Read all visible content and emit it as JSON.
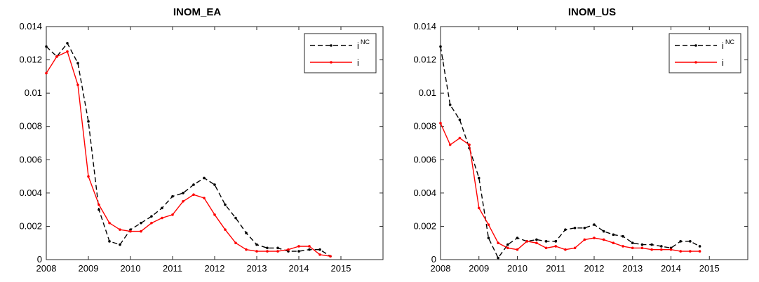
{
  "chart_data": [
    {
      "type": "line",
      "title": "INOM_EA",
      "xlabel": "",
      "ylabel": "",
      "xlim": [
        2008,
        2016
      ],
      "ylim": [
        0,
        0.014
      ],
      "xticks": [
        2008,
        2009,
        2010,
        2011,
        2012,
        2013,
        2014,
        2015
      ],
      "yticks": [
        0,
        0.002,
        0.004,
        0.006,
        0.008,
        0.01,
        0.012,
        0.014
      ],
      "ytick_labels": [
        "0",
        "0.002",
        "0.004",
        "0.006",
        "0.008",
        "0.01",
        "0.012",
        "0.014"
      ],
      "legend_position": "top-right",
      "series": [
        {
          "name": "i^NC",
          "legend_base": "i",
          "legend_sup": "NC",
          "color": "#000000",
          "style": "dashed",
          "x": [
            2008.0,
            2008.25,
            2008.5,
            2008.75,
            2009.0,
            2009.25,
            2009.5,
            2009.75,
            2010.0,
            2010.25,
            2010.5,
            2010.75,
            2011.0,
            2011.25,
            2011.5,
            2011.75,
            2012.0,
            2012.25,
            2012.5,
            2012.75,
            2013.0,
            2013.25,
            2013.5,
            2013.75,
            2014.0,
            2014.25,
            2014.5,
            2014.75
          ],
          "y": [
            0.0128,
            0.0122,
            0.013,
            0.0118,
            0.0083,
            0.003,
            0.0011,
            0.0009,
            0.0018,
            0.0022,
            0.0026,
            0.0031,
            0.0038,
            0.004,
            0.0045,
            0.0049,
            0.0045,
            0.0033,
            0.0025,
            0.0016,
            0.0009,
            0.0007,
            0.0007,
            0.0005,
            0.0005,
            0.0006,
            0.0006,
            0.0002
          ]
        },
        {
          "name": "i",
          "legend_base": "i",
          "legend_sup": "",
          "color": "#ff0000",
          "style": "solid",
          "x": [
            2008.0,
            2008.25,
            2008.5,
            2008.75,
            2009.0,
            2009.25,
            2009.5,
            2009.75,
            2010.0,
            2010.25,
            2010.5,
            2010.75,
            2011.0,
            2011.25,
            2011.5,
            2011.75,
            2012.0,
            2012.25,
            2012.5,
            2012.75,
            2013.0,
            2013.25,
            2013.5,
            2013.75,
            2014.0,
            2014.25,
            2014.5,
            2014.75
          ],
          "y": [
            0.0112,
            0.0122,
            0.0125,
            0.0105,
            0.005,
            0.0033,
            0.0022,
            0.0018,
            0.0017,
            0.0017,
            0.0022,
            0.0025,
            0.0027,
            0.0035,
            0.0039,
            0.0037,
            0.0027,
            0.0018,
            0.001,
            0.0006,
            0.0005,
            0.0005,
            0.0005,
            0.0006,
            0.0008,
            0.0008,
            0.0003,
            0.0002
          ]
        }
      ]
    },
    {
      "type": "line",
      "title": "INOM_US",
      "xlabel": "",
      "ylabel": "",
      "xlim": [
        2008,
        2016
      ],
      "ylim": [
        0,
        0.014
      ],
      "xticks": [
        2008,
        2009,
        2010,
        2011,
        2012,
        2013,
        2014,
        2015
      ],
      "yticks": [
        0,
        0.002,
        0.004,
        0.006,
        0.008,
        0.01,
        0.012,
        0.014
      ],
      "ytick_labels": [
        "0",
        "0.002",
        "0.004",
        "0.006",
        "0.008",
        "0.01",
        "0.012",
        "0.014"
      ],
      "legend_position": "top-right",
      "series": [
        {
          "name": "i^NC",
          "legend_base": "i",
          "legend_sup": "NC",
          "color": "#000000",
          "style": "dashed",
          "x": [
            2008.0,
            2008.25,
            2008.5,
            2008.75,
            2009.0,
            2009.25,
            2009.5,
            2009.75,
            2010.0,
            2010.25,
            2010.5,
            2010.75,
            2011.0,
            2011.25,
            2011.5,
            2011.75,
            2012.0,
            2012.25,
            2012.5,
            2012.75,
            2013.0,
            2013.25,
            2013.5,
            2013.75,
            2014.0,
            2014.25,
            2014.5,
            2014.75
          ],
          "y": [
            0.0128,
            0.0093,
            0.0084,
            0.0067,
            0.0049,
            0.0013,
            0.0001,
            0.0009,
            0.0013,
            0.0011,
            0.0012,
            0.0011,
            0.0011,
            0.0018,
            0.0019,
            0.0019,
            0.0021,
            0.0017,
            0.0015,
            0.0014,
            0.001,
            0.0009,
            0.0009,
            0.0008,
            0.0007,
            0.0011,
            0.0011,
            0.0008
          ]
        },
        {
          "name": "i",
          "legend_base": "i",
          "legend_sup": "",
          "color": "#ff0000",
          "style": "solid",
          "x": [
            2008.0,
            2008.25,
            2008.5,
            2008.75,
            2009.0,
            2009.25,
            2009.5,
            2009.75,
            2010.0,
            2010.25,
            2010.5,
            2010.75,
            2011.0,
            2011.25,
            2011.5,
            2011.75,
            2012.0,
            2012.25,
            2012.5,
            2012.75,
            2013.0,
            2013.25,
            2013.5,
            2013.75,
            2014.0,
            2014.25,
            2014.5,
            2014.75
          ],
          "y": [
            0.0082,
            0.0069,
            0.0073,
            0.0069,
            0.0031,
            0.0021,
            0.001,
            0.0007,
            0.0006,
            0.0011,
            0.001,
            0.0007,
            0.0008,
            0.0006,
            0.0007,
            0.0012,
            0.0013,
            0.0012,
            0.001,
            0.0008,
            0.0007,
            0.0007,
            0.0006,
            0.0006,
            0.0006,
            0.0005,
            0.0005,
            0.0005
          ]
        }
      ]
    }
  ]
}
